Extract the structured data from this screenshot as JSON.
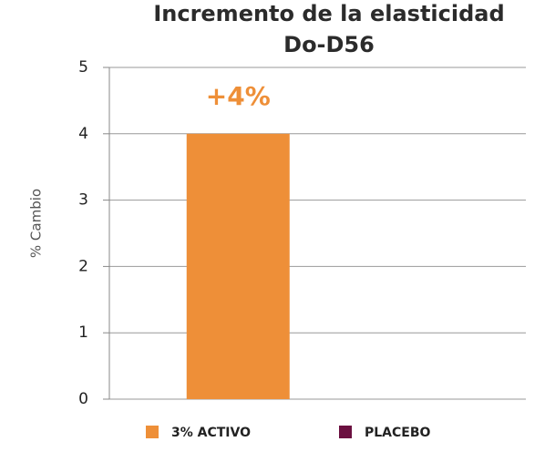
{
  "chart_data": {
    "type": "bar",
    "title": [
      "Incremento de la elasticidad",
      "Do-D56"
    ],
    "ylabel": "% Cambio",
    "categories": [
      "3% ACTIVO",
      "PLACEBO"
    ],
    "values": [
      4,
      0
    ],
    "value_labels": [
      "+4%",
      null
    ],
    "colors": [
      "#ee8f38",
      "#6b1040"
    ],
    "ylim": [
      0,
      5
    ],
    "yticks": [
      0,
      1,
      2,
      3,
      4,
      5
    ],
    "grid": true
  }
}
